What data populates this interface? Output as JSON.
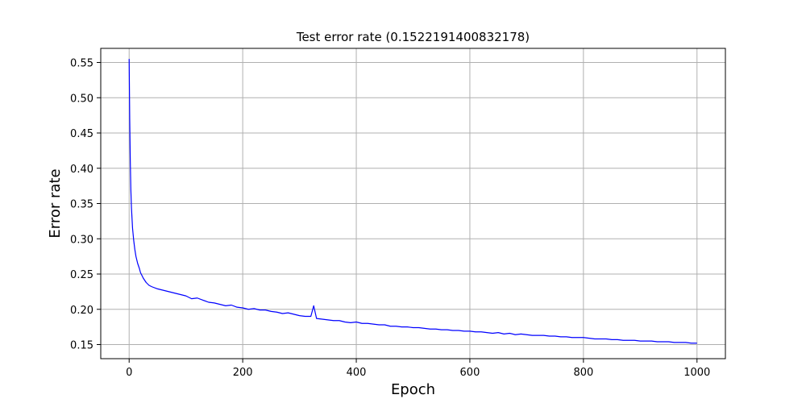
{
  "chart_data": {
    "type": "line",
    "title": "Test error rate (0.1522191400832178)",
    "xlabel": "Epoch",
    "ylabel": "Error rate",
    "xlim": [
      -50,
      1050
    ],
    "ylim": [
      0.13,
      0.57
    ],
    "xticks": [
      0,
      200,
      400,
      600,
      800,
      1000
    ],
    "yticks": [
      0.15,
      0.2,
      0.25,
      0.3,
      0.35,
      0.4,
      0.45,
      0.5,
      0.55
    ],
    "grid": true,
    "legend": "none",
    "series": [
      {
        "color": "#0000ff",
        "x": [
          0,
          1,
          2,
          3,
          4,
          5,
          6,
          8,
          10,
          12,
          15,
          18,
          20,
          25,
          30,
          35,
          40,
          50,
          60,
          70,
          80,
          90,
          100,
          110,
          120,
          130,
          140,
          150,
          160,
          170,
          180,
          190,
          200,
          210,
          220,
          230,
          240,
          250,
          260,
          270,
          280,
          290,
          300,
          310,
          320,
          325,
          330,
          340,
          350,
          360,
          370,
          380,
          390,
          400,
          410,
          420,
          430,
          440,
          450,
          460,
          470,
          480,
          490,
          500,
          510,
          520,
          530,
          540,
          550,
          560,
          570,
          580,
          590,
          600,
          610,
          620,
          630,
          640,
          650,
          660,
          670,
          680,
          690,
          700,
          710,
          720,
          730,
          740,
          750,
          760,
          770,
          780,
          790,
          800,
          810,
          820,
          830,
          840,
          850,
          860,
          870,
          880,
          890,
          900,
          910,
          920,
          930,
          940,
          950,
          960,
          970,
          980,
          990,
          1000
        ],
        "y": [
          0.555,
          0.47,
          0.41,
          0.37,
          0.345,
          0.33,
          0.315,
          0.298,
          0.285,
          0.275,
          0.265,
          0.258,
          0.252,
          0.244,
          0.238,
          0.234,
          0.232,
          0.229,
          0.227,
          0.225,
          0.223,
          0.221,
          0.219,
          0.215,
          0.216,
          0.213,
          0.21,
          0.209,
          0.207,
          0.205,
          0.206,
          0.203,
          0.202,
          0.2,
          0.201,
          0.199,
          0.199,
          0.197,
          0.196,
          0.194,
          0.195,
          0.193,
          0.191,
          0.19,
          0.19,
          0.205,
          0.187,
          0.186,
          0.185,
          0.184,
          0.184,
          0.182,
          0.181,
          0.182,
          0.18,
          0.18,
          0.179,
          0.178,
          0.178,
          0.176,
          0.176,
          0.175,
          0.175,
          0.174,
          0.174,
          0.173,
          0.172,
          0.172,
          0.171,
          0.171,
          0.17,
          0.17,
          0.169,
          0.169,
          0.168,
          0.168,
          0.167,
          0.166,
          0.167,
          0.165,
          0.166,
          0.164,
          0.165,
          0.164,
          0.163,
          0.163,
          0.163,
          0.162,
          0.162,
          0.161,
          0.161,
          0.16,
          0.16,
          0.16,
          0.159,
          0.158,
          0.158,
          0.158,
          0.157,
          0.157,
          0.156,
          0.156,
          0.156,
          0.155,
          0.155,
          0.155,
          0.154,
          0.154,
          0.154,
          0.153,
          0.153,
          0.153,
          0.152,
          0.152
        ]
      }
    ]
  }
}
